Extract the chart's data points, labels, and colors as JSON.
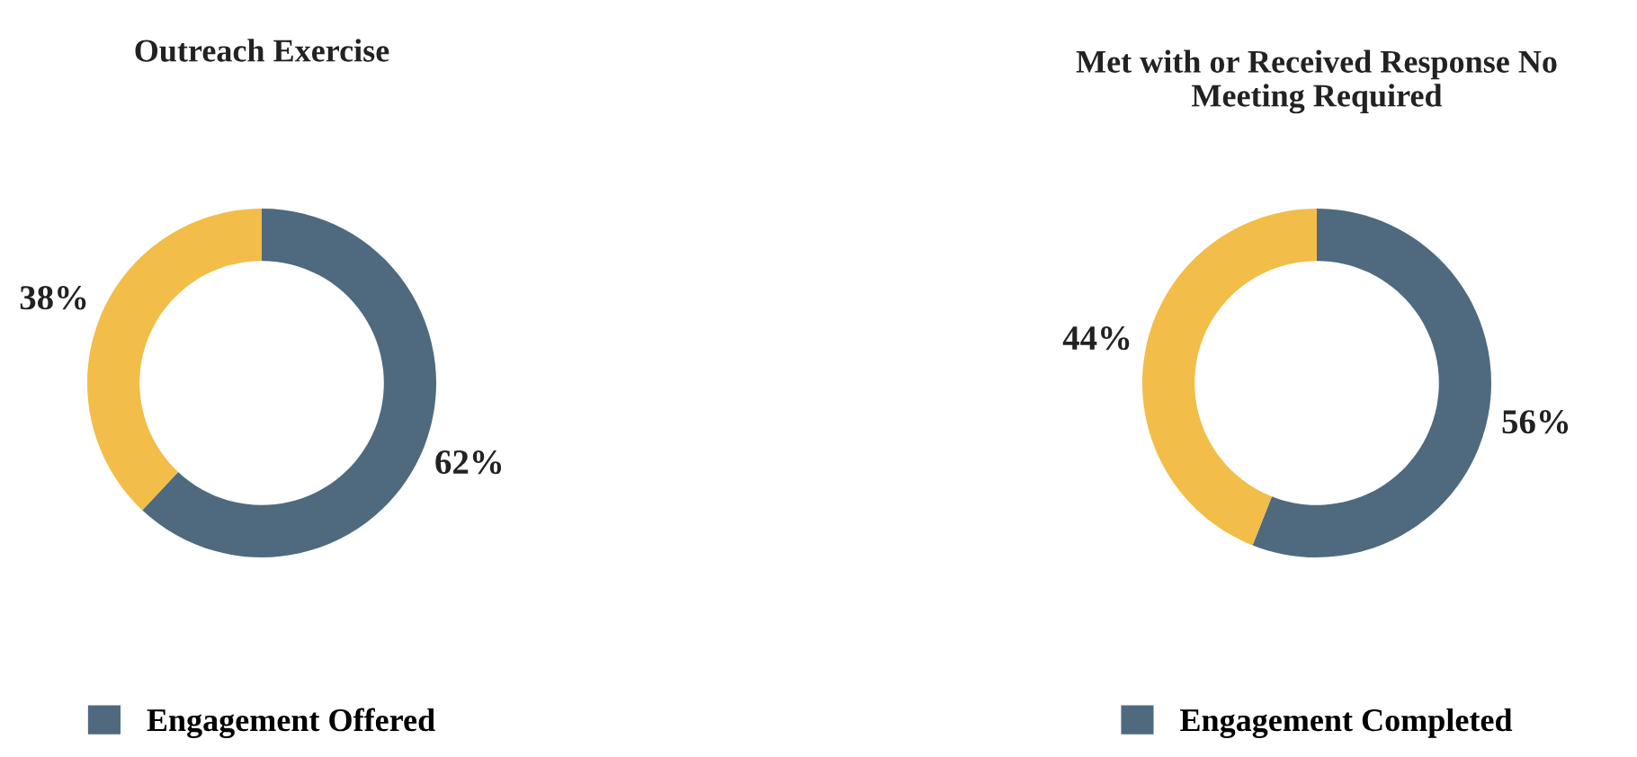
{
  "chart_data": [
    {
      "type": "donut",
      "title": "Outreach Exercise",
      "categories": [
        "Engagement Offered",
        null
      ],
      "values": [
        62,
        38
      ],
      "colors": [
        "#4f6a7e",
        "#f2bd48"
      ],
      "value_labels": [
        "62%",
        "38%"
      ],
      "legend": "bottom"
    },
    {
      "type": "donut",
      "title": "Met with or Received Response No\nMeeting Required",
      "categories": [
        "Engagement Completed",
        null
      ],
      "values": [
        56,
        44
      ],
      "colors": [
        "#4f6a7e",
        "#f2bd48"
      ],
      "value_labels": [
        "56%",
        "44%"
      ],
      "legend": "bottom"
    }
  ]
}
